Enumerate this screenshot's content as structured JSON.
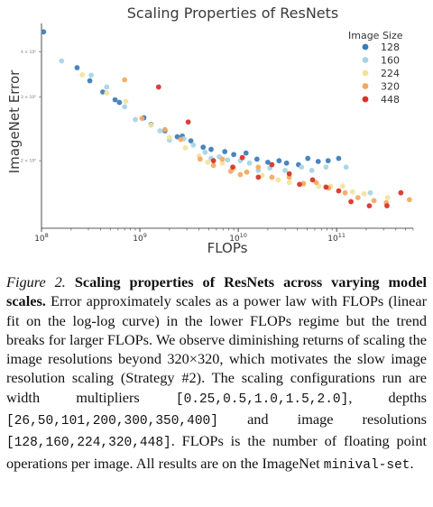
{
  "chart_data": {
    "type": "scatter",
    "title": "Scaling Properties of ResNets",
    "xlabel": "FLOPs",
    "ylabel": "ImageNet Error",
    "x_scale": "log",
    "y_scale": "log",
    "xlim": [
      100000000.0,
      600000000000.0
    ],
    "ylim": [
      1.3,
      4.8
    ],
    "x_ticks": [
      {
        "value": 100000000.0,
        "base": "10",
        "exp": "8"
      },
      {
        "value": 1000000000.0,
        "base": "10",
        "exp": "9"
      },
      {
        "value": 10000000000.0,
        "base": "10",
        "exp": "10"
      },
      {
        "value": 100000000000.0,
        "base": "10",
        "exp": "11"
      }
    ],
    "y_ticks": [
      {
        "value": 4,
        "label": "4 × 10⁰"
      },
      {
        "value": 3,
        "label": "3 × 10⁰"
      },
      {
        "value": 2,
        "label": "2 × 10⁰"
      }
    ],
    "grid": false,
    "legend": {
      "title": "Image Size",
      "placement": "top-right"
    },
    "series": [
      {
        "name": "128",
        "color": "#3b7bb8",
        "points": [
          [
            105000000.0,
            4.55
          ],
          [
            230000000.0,
            3.62
          ],
          [
            310000000.0,
            3.33
          ],
          [
            420000000.0,
            3.1
          ],
          [
            560000000.0,
            2.95
          ],
          [
            620000000.0,
            2.9
          ],
          [
            1100000000.0,
            2.63
          ],
          [
            1300000000.0,
            2.52
          ],
          [
            1800000000.0,
            2.42
          ],
          [
            2400000000.0,
            2.33
          ],
          [
            2700000000.0,
            2.34
          ],
          [
            3300000000.0,
            2.27
          ],
          [
            4400000000.0,
            2.18
          ],
          [
            5300000000.0,
            2.15
          ],
          [
            7300000000.0,
            2.12
          ],
          [
            9000000000.0,
            2.08
          ],
          [
            12000000000.0,
            2.1
          ],
          [
            15500000000.0,
            2.02
          ],
          [
            20000000000.0,
            1.98
          ],
          [
            26000000000.0,
            2.0
          ],
          [
            31000000000.0,
            1.97
          ],
          [
            41000000000.0,
            1.95
          ],
          [
            51000000000.0,
            2.03
          ],
          [
            65000000000.0,
            1.99
          ],
          [
            82000000000.0,
            2.0
          ],
          [
            105000000000.0,
            2.03
          ]
        ]
      },
      {
        "name": "160",
        "color": "#a7d3e5",
        "points": [
          [
            160000000.0,
            3.78
          ],
          [
            320000000.0,
            3.45
          ],
          [
            460000000.0,
            3.2
          ],
          [
            700000000.0,
            2.82
          ],
          [
            900000000.0,
            2.6
          ],
          [
            1600000000.0,
            2.42
          ],
          [
            2000000000.0,
            2.28
          ],
          [
            2800000000.0,
            2.3
          ],
          [
            3500000000.0,
            2.21
          ],
          [
            4600000000.0,
            2.11
          ],
          [
            5300000000.0,
            2.03
          ],
          [
            6400000000.0,
            2.05
          ],
          [
            7800000000.0,
            2.01
          ],
          [
            10500000000.0,
            2.0
          ],
          [
            13000000000.0,
            1.97
          ],
          [
            16000000000.0,
            1.88
          ],
          [
            21000000000.0,
            1.91
          ],
          [
            30000000000.0,
            1.88
          ],
          [
            44000000000.0,
            1.92
          ],
          [
            56000000000.0,
            1.88
          ],
          [
            78000000000.0,
            1.92
          ],
          [
            125000000000.0,
            1.92
          ],
          [
            220000000000.0,
            1.63
          ]
        ]
      },
      {
        "name": "224",
        "color": "#f2e39a",
        "points": [
          [
            260000000.0,
            3.46
          ],
          [
            460000000.0,
            3.08
          ],
          [
            720000000.0,
            2.92
          ],
          [
            1300000000.0,
            2.51
          ],
          [
            2000000000.0,
            2.32
          ],
          [
            2900000000.0,
            2.17
          ],
          [
            4000000000.0,
            2.06
          ],
          [
            4900000000.0,
            1.98
          ],
          [
            6900000000.0,
            1.97
          ],
          [
            9100000000.0,
            1.9
          ],
          [
            12200000000.0,
            1.86
          ],
          [
            17500000000.0,
            1.82
          ],
          [
            25500000000.0,
            1.77
          ],
          [
            33000000000.0,
            1.74
          ],
          [
            46000000000.0,
            1.72
          ],
          [
            66000000000.0,
            1.7
          ],
          [
            87000000000.0,
            1.7
          ],
          [
            115000000000.0,
            1.7
          ],
          [
            145000000000.0,
            1.64
          ],
          [
            190000000000.0,
            1.62
          ],
          [
            330000000000.0,
            1.58
          ]
        ]
      },
      {
        "name": "320",
        "color": "#f4a861",
        "points": [
          [
            700000000.0,
            3.35
          ],
          [
            1050000000.0,
            2.62
          ],
          [
            1800000000.0,
            2.44
          ],
          [
            2600000000.0,
            2.29
          ],
          [
            4100000000.0,
            2.02
          ],
          [
            5600000000.0,
            1.94
          ],
          [
            6900000000.0,
            2.02
          ],
          [
            8400000000.0,
            1.87
          ],
          [
            10500000000.0,
            1.83
          ],
          [
            12200000000.0,
            1.86
          ],
          [
            16000000000.0,
            1.92
          ],
          [
            22000000000.0,
            1.8
          ],
          [
            33000000000.0,
            1.8
          ],
          [
            46000000000.0,
            1.73
          ],
          [
            62000000000.0,
            1.74
          ],
          [
            83000000000.0,
            1.68
          ],
          [
            122000000000.0,
            1.63
          ],
          [
            165000000000.0,
            1.58
          ],
          [
            240000000000.0,
            1.55
          ],
          [
            320000000000.0,
            1.53
          ],
          [
            550000000000.0,
            1.56
          ]
        ]
      },
      {
        "name": "448",
        "color": "#d73027",
        "points": [
          [
            1550000000.0,
            3.2
          ],
          [
            3100000000.0,
            2.56
          ],
          [
            5600000000.0,
            2.0
          ],
          [
            8800000000.0,
            1.92
          ],
          [
            11000000000.0,
            2.04
          ],
          [
            16000000000.0,
            1.8
          ],
          [
            22000000000.0,
            1.95
          ],
          [
            33000000000.0,
            1.84
          ],
          [
            42000000000.0,
            1.72
          ],
          [
            57000000000.0,
            1.77
          ],
          [
            78000000000.0,
            1.69
          ],
          [
            105000000000.0,
            1.65
          ],
          [
            140000000000.0,
            1.54
          ],
          [
            215000000000.0,
            1.5
          ],
          [
            325000000000.0,
            1.5
          ],
          [
            450000000000.0,
            1.63
          ]
        ]
      }
    ]
  },
  "caption": {
    "label": "Figure 2.",
    "heading": "Scaling properties of ResNets across varying model scales.",
    "t1": "Error approximately scales as a power law with FLOPs (linear fit on the log-log curve) in the lower FLOPs regime but the trend breaks for larger FLOPs.",
    "t2": "We observe diminishing returns of scaling the image resolutions beyond 320×320, which motivates the slow image resolution scaling (Strategy #2).",
    "t3": "The scaling configurations run are width multipliers",
    "code_widths": "[0.25,0.5,1.0,1.5,2.0]",
    "t4": ", depths",
    "code_depths": "[26,50,101,200,300,350,400]",
    "t5": "and image resolutions",
    "code_resolutions": "[128,160,224,320,448]",
    "t6": ". FLOPs is the number of floating point operations per image. All results are on the ImageNet",
    "code_split": "minival-set",
    "t7": "."
  }
}
